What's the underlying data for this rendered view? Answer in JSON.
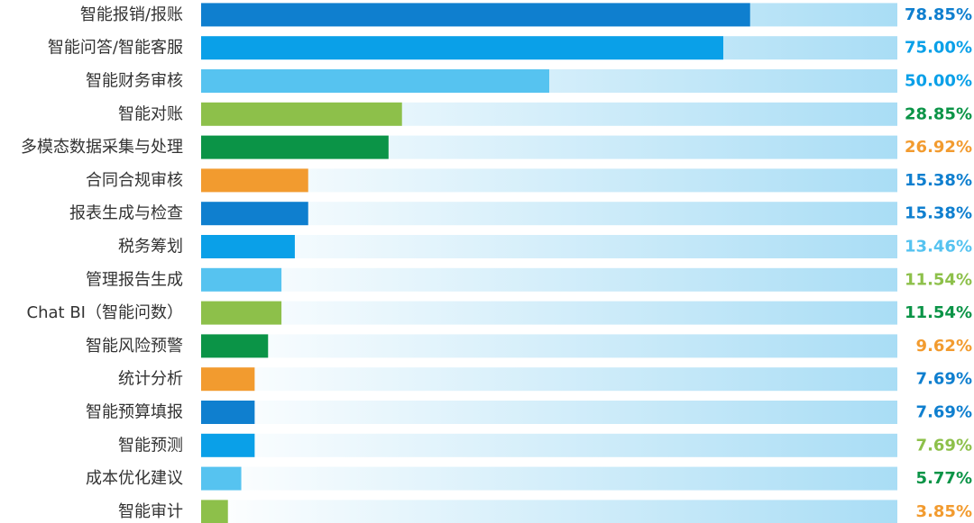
{
  "chart_data": {
    "type": "bar",
    "orientation": "horizontal",
    "xlim": [
      0,
      100
    ],
    "categories": [
      "智能报销/报账",
      "智能问答/智能客服",
      "智能财务审核",
      "智能对账",
      "多模态数据采集与处理",
      "合同合规审核",
      "报表生成与检查",
      "税务筹划",
      "管理报告生成",
      "Chat BI（智能问数）",
      "智能风险预警",
      "统计分析",
      "智能预算填报",
      "智能预测",
      "成本优化建议",
      "智能审计"
    ],
    "values": [
      78.85,
      75.0,
      50.0,
      28.85,
      26.92,
      15.38,
      15.38,
      13.46,
      11.54,
      11.54,
      9.62,
      7.69,
      7.69,
      7.69,
      5.77,
      3.85
    ],
    "value_labels": [
      "78.85%",
      "75.00%",
      "50.00%",
      "28.85%",
      "26.92%",
      "15.38%",
      "15.38%",
      "13.46%",
      "11.54%",
      "11.54%",
      "9.62%",
      "7.69%",
      "7.69%",
      "7.69%",
      "5.77%",
      "3.85%"
    ],
    "bar_colors": [
      "#0f7fcf",
      "#0aa0e8",
      "#56c3f0",
      "#8dc04a",
      "#0b9447",
      "#f29b2f",
      "#0f7fcf",
      "#0aa0e8",
      "#56c3f0",
      "#8dc04a",
      "#0b9447",
      "#f29b2f",
      "#0f7fcf",
      "#0aa0e8",
      "#56c3f0",
      "#8dc04a"
    ],
    "value_label_colors": [
      "#0f7fcf",
      "#0aa0e8",
      "#0aa0e8",
      "#0b9447",
      "#f29b2f",
      "#0f7fcf",
      "#0f7fcf",
      "#56c3f0",
      "#8dc04a",
      "#0b9447",
      "#f29b2f",
      "#0f7fcf",
      "#0f7fcf",
      "#8dc04a",
      "#0b9447",
      "#f29b2f"
    ],
    "track_gradient": [
      "#ffffff",
      "#a9ddf5"
    ]
  }
}
